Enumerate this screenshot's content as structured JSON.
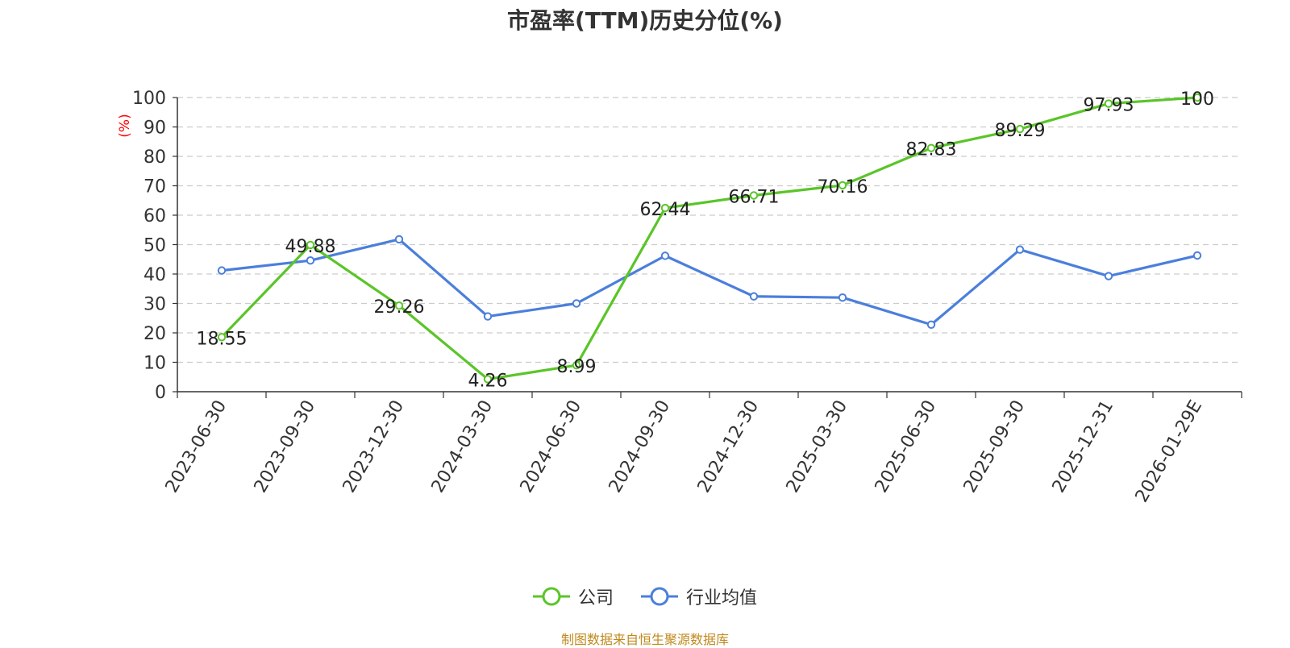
{
  "colors": {
    "company": "#5ac528",
    "industry": "#4b7fdb",
    "axis": "#333333",
    "grid": "#cccccc",
    "ylabel": "#ff0000",
    "source": "#c08a1e"
  },
  "legend": {
    "company": "公司",
    "industry": "行业均值"
  },
  "source_note": "制图数据来自恒生聚源数据库",
  "chart_data": {
    "type": "line",
    "title": "市盈率(TTM)历史分位(%)",
    "ylabel": "(%)",
    "xlabel": "",
    "ylim": [
      0,
      100
    ],
    "yticks": [
      0,
      10,
      20,
      30,
      40,
      50,
      60,
      70,
      80,
      90,
      100
    ],
    "grid": true,
    "legend_position": "bottom",
    "categories": [
      "2023-06-30",
      "2023-09-30",
      "2023-12-30",
      "2024-03-30",
      "2024-06-30",
      "2024-09-30",
      "2024-12-30",
      "2025-03-30",
      "2025-06-30",
      "2025-09-30",
      "2025-12-31",
      "2026-01-29E"
    ],
    "series": [
      {
        "name": "公司",
        "color": "#5ac528",
        "show_labels": true,
        "values": [
          18.55,
          49.88,
          29.26,
          4.26,
          8.99,
          62.44,
          66.71,
          70.16,
          82.83,
          89.29,
          97.93,
          100
        ]
      },
      {
        "name": "行业均值",
        "color": "#4b7fdb",
        "show_labels": false,
        "values": [
          41.2,
          44.6,
          51.8,
          25.6,
          30.0,
          46.2,
          32.4,
          32.0,
          22.8,
          48.3,
          39.3,
          46.3
        ]
      }
    ]
  }
}
